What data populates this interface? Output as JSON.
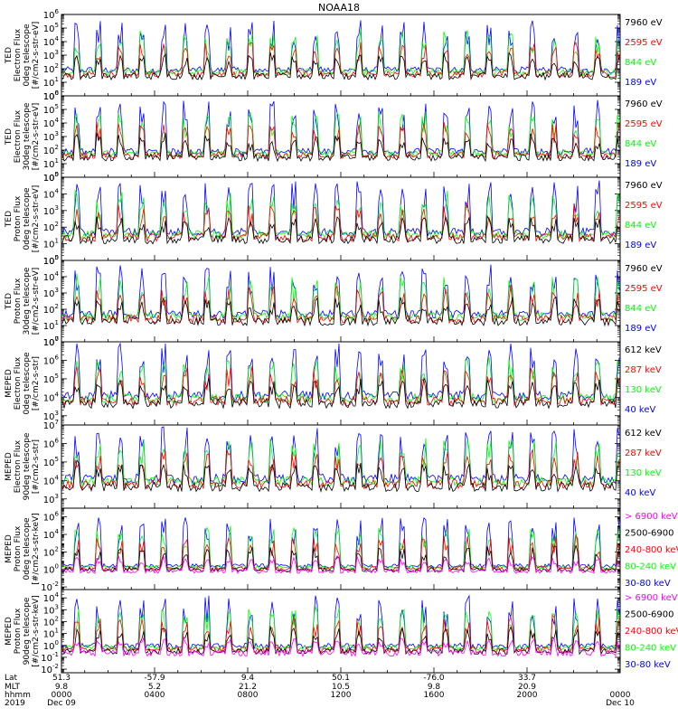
{
  "title": "NOAA18",
  "colors": {
    "black": "#000000",
    "red": "#ff0000",
    "green": "#00ff00",
    "blue": "#0000ff",
    "magenta": "#ff00ff"
  },
  "chart_data": [
    {
      "type": "line",
      "ylabel": [
        "TED",
        "Electron Flux",
        "0deg telescope",
        "[#/cm2-s-str-eV]"
      ],
      "log_scale": true,
      "yticks_exp": [
        0,
        1,
        2,
        3,
        4,
        5,
        6
      ],
      "ylim_exp": [
        0,
        6
      ],
      "legend": [
        {
          "label": "7960 eV",
          "color": "black"
        },
        {
          "label": "2595 eV",
          "color": "red"
        },
        {
          "label": "844 eV",
          "color": "green"
        },
        {
          "label": "189 eV",
          "color": "blue"
        }
      ]
    },
    {
      "type": "line",
      "ylabel": [
        "TED",
        "Electron Flux",
        "30deg telescope",
        "[#/cm2-s-str-eV]"
      ],
      "log_scale": true,
      "yticks_exp": [
        0,
        1,
        2,
        3,
        4,
        5,
        6
      ],
      "ylim_exp": [
        0,
        6
      ],
      "legend": [
        {
          "label": "7960 eV",
          "color": "black"
        },
        {
          "label": "2595 eV",
          "color": "red"
        },
        {
          "label": "844 eV",
          "color": "green"
        },
        {
          "label": "189 eV",
          "color": "blue"
        }
      ]
    },
    {
      "type": "line",
      "ylabel": [
        "TED",
        "Proton Flux",
        "0deg telescope",
        "[#/cm2-s-str-eV]"
      ],
      "log_scale": true,
      "yticks_exp": [
        0,
        1,
        2,
        3,
        4,
        5
      ],
      "ylim_exp": [
        0,
        5
      ],
      "legend": [
        {
          "label": "7960 eV",
          "color": "black"
        },
        {
          "label": "2595 eV",
          "color": "red"
        },
        {
          "label": "844 eV",
          "color": "green"
        },
        {
          "label": "189 eV",
          "color": "blue"
        }
      ]
    },
    {
      "type": "line",
      "ylabel": [
        "TED",
        "Proton Flux",
        "30deg telescope",
        "[#/cm2-s-str-eV]"
      ],
      "log_scale": true,
      "yticks_exp": [
        0,
        1,
        2,
        3,
        4,
        5
      ],
      "ylim_exp": [
        0,
        5
      ],
      "legend": [
        {
          "label": "7960 eV",
          "color": "black"
        },
        {
          "label": "2595 eV",
          "color": "red"
        },
        {
          "label": "844 eV",
          "color": "green"
        },
        {
          "label": "189 eV",
          "color": "blue"
        }
      ]
    },
    {
      "type": "line",
      "ylabel": [
        "MEPED",
        "Electron Flux",
        "0deg telescope",
        "[#/cm2-s-str]"
      ],
      "log_scale": true,
      "yticks_exp": [
        3,
        4,
        5,
        6,
        7
      ],
      "ylim_exp": [
        2.5,
        7
      ],
      "legend": [
        {
          "label": "612 keV",
          "color": "black"
        },
        {
          "label": "287 keV",
          "color": "red"
        },
        {
          "label": "130 keV",
          "color": "green"
        },
        {
          "label": "40 keV",
          "color": "blue"
        }
      ]
    },
    {
      "type": "line",
      "ylabel": [
        "MEPED",
        "Electron Flux",
        "90deg telescope",
        "[#/cm2-s-str]"
      ],
      "log_scale": true,
      "yticks_exp": [
        3,
        4,
        5,
        6,
        7
      ],
      "ylim_exp": [
        2.5,
        7
      ],
      "legend": [
        {
          "label": "612 keV",
          "color": "black"
        },
        {
          "label": "287 keV",
          "color": "red"
        },
        {
          "label": "130 keV",
          "color": "green"
        },
        {
          "label": "40 keV",
          "color": "blue"
        }
      ]
    },
    {
      "type": "line",
      "ylabel": [
        "MEPED",
        "Proton Flux",
        "0deg telescope",
        "[#/cm2-s-str-keV]"
      ],
      "log_scale": true,
      "yticks_exp": [
        -2,
        0,
        2,
        4,
        6
      ],
      "ylim_exp": [
        -2.3,
        7
      ],
      "legend": [
        {
          "label": "> 6900 keV",
          "color": "magenta"
        },
        {
          "label": "2500-6900",
          "color": "black"
        },
        {
          "label": "240-800 keV",
          "color": "red"
        },
        {
          "label": "80-240 keV",
          "color": "green"
        },
        {
          "label": "30-80 keV",
          "color": "blue"
        }
      ]
    },
    {
      "type": "line",
      "ylabel": [
        "MEPED",
        "Proton Flux",
        "90deg telescope",
        "[#/cm2-s-str-keV]"
      ],
      "log_scale": true,
      "yticks_exp": [
        -2,
        -1,
        0,
        1,
        2,
        3,
        4
      ],
      "ylim_exp": [
        -2.3,
        4.7
      ],
      "legend": [
        {
          "label": "> 6900 keV",
          "color": "magenta"
        },
        {
          "label": "2500-6900",
          "color": "black"
        },
        {
          "label": "240-800 keV",
          "color": "red"
        },
        {
          "label": "80-240 keV",
          "color": "green"
        },
        {
          "label": "30-80 keV",
          "color": "blue"
        }
      ]
    }
  ],
  "xaxis": {
    "row_labels": [
      "Lat",
      "MLT",
      "hhmm",
      "2019"
    ],
    "ticks": [
      {
        "lat": "51.3",
        "mlt": "9.8",
        "hhmm": "0000",
        "date": "Dec 09"
      },
      {
        "lat": "-57.9",
        "mlt": "5.2",
        "hhmm": "0400",
        "date": ""
      },
      {
        "lat": "9.4",
        "mlt": "21.2",
        "hhmm": "0800",
        "date": ""
      },
      {
        "lat": "50.1",
        "mlt": "10.5",
        "hhmm": "1200",
        "date": ""
      },
      {
        "lat": "-76.0",
        "mlt": "9.8",
        "hhmm": "1600",
        "date": ""
      },
      {
        "lat": "33.7",
        "mlt": "20.9",
        "hhmm": "2000",
        "date": ""
      },
      {
        "lat": "",
        "mlt": "",
        "hhmm": "0000",
        "date": "Dec 10"
      }
    ]
  }
}
